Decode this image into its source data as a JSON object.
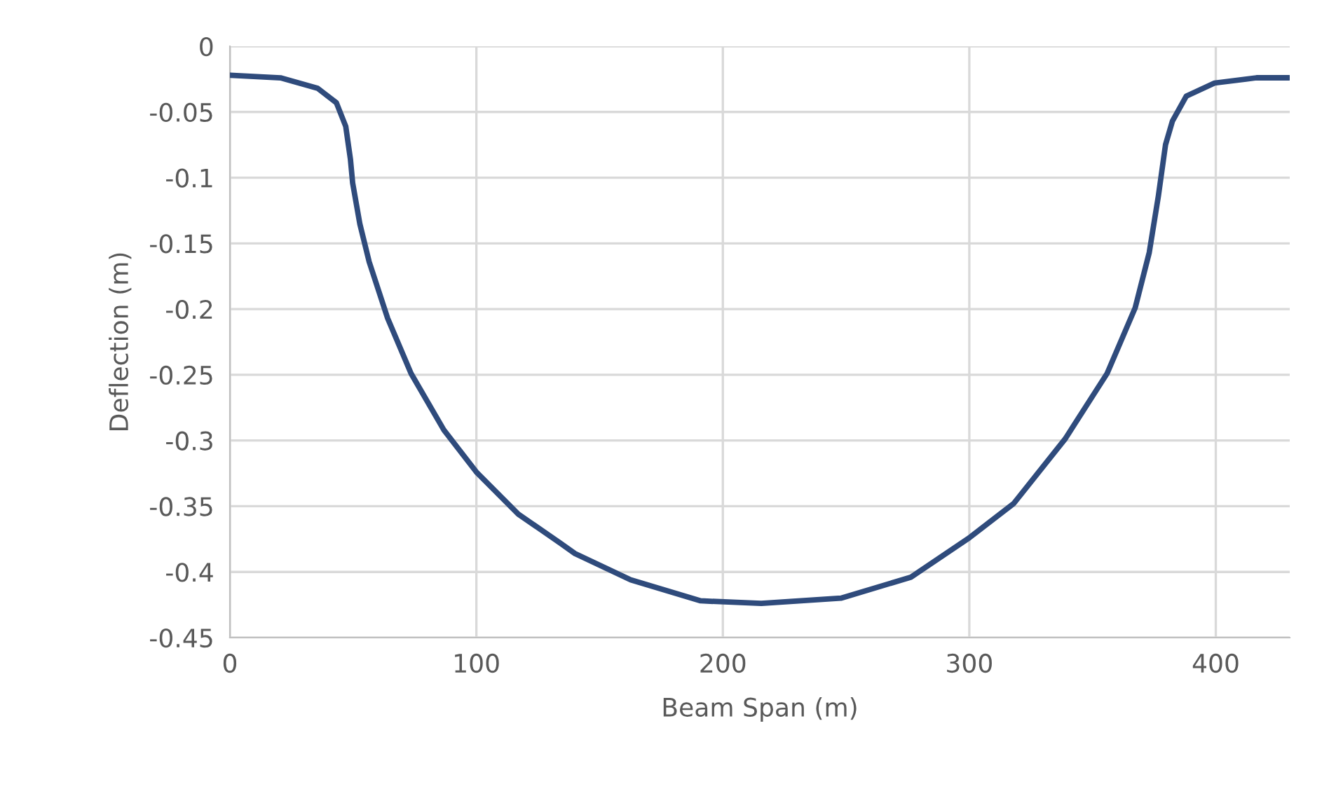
{
  "chart_data": {
    "type": "line",
    "xlabel": "Beam Span (m)",
    "ylabel": "Deflection (m)",
    "series": [
      {
        "color": "#2f4b7c",
        "x": [
          0,
          20.5,
          35.6,
          43.2,
          47,
          48.9,
          49.8,
          52.7,
          56.5,
          64,
          73.5,
          86.8,
          100,
          117,
          134,
          140,
          162.6,
          191,
          215.6,
          247.9,
          276.3,
          300,
          318,
          338.8,
          355.9,
          367.3,
          373,
          376.7,
          379.6,
          382.4,
          388,
          399.5,
          416.5,
          429.8
        ],
        "values": [
          -0.022,
          -0.024,
          -0.032,
          -0.043,
          -0.061,
          -0.086,
          -0.104,
          -0.135,
          -0.164,
          -0.207,
          -0.249,
          -0.292,
          -0.324,
          -0.356,
          -0.378,
          -0.386,
          -0.406,
          -0.422,
          -0.424,
          -0.42,
          -0.404,
          -0.374,
          -0.348,
          -0.299,
          -0.249,
          -0.199,
          -0.157,
          -0.114,
          -0.075,
          -0.057,
          -0.038,
          -0.028,
          -0.024,
          -0.024
        ]
      }
    ],
    "xlim": [
      0,
      430
    ],
    "xticks": [
      0,
      100,
      200,
      300,
      400
    ],
    "ylim": [
      -0.45,
      0
    ],
    "yticks": [
      -0.45,
      -0.4,
      -0.35,
      -0.3,
      -0.25,
      -0.2,
      -0.15,
      -0.1,
      -0.05,
      0
    ],
    "grid": true,
    "marker": "none",
    "line_style": "solid"
  }
}
